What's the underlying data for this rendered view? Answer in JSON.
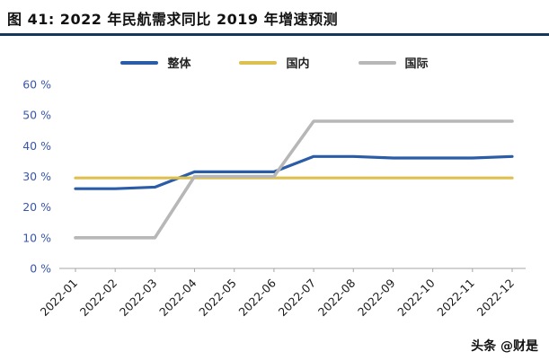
{
  "header": {
    "title": "图 41:  2022 年民航需求同比 2019 年增速预测"
  },
  "watermark": {
    "text": "头条 @财是"
  },
  "chart_data": {
    "type": "line",
    "title": "2022 年民航需求同比 2019 年增速预测",
    "xlabel": "",
    "ylabel": "",
    "x": [
      "2022-01",
      "2022-02",
      "2022-03",
      "2022-04",
      "2022-05",
      "2022-06",
      "2022-07",
      "2022-08",
      "2022-09",
      "2022-10",
      "2022-11",
      "2022-12"
    ],
    "ylim": [
      0,
      60
    ],
    "yticks": [
      0,
      10,
      20,
      30,
      40,
      50,
      60
    ],
    "ytick_suffix": " %",
    "grid": false,
    "legend_position": "top",
    "axis_color": "#a6a6a6",
    "ytick_label_color": "#3a57a7",
    "xtick_label_color": "#1a1a1a",
    "series": [
      {
        "name": "整体",
        "color": "#2a5ca8",
        "width": 3.2,
        "values": [
          26,
          26,
          26.5,
          31.5,
          31.5,
          31.5,
          36.5,
          36.5,
          36,
          36,
          36,
          36.5
        ]
      },
      {
        "name": "国内",
        "color": "#dec050",
        "width": 3.2,
        "values": [
          29.5,
          29.5,
          29.5,
          29.5,
          29.5,
          29.5,
          29.5,
          29.5,
          29.5,
          29.5,
          29.5,
          29.5
        ]
      },
      {
        "name": "国际",
        "color": "#b7b7b7",
        "width": 3.6,
        "values": [
          10,
          10,
          10,
          30,
          30,
          30,
          48,
          48,
          48,
          48,
          48,
          48
        ]
      }
    ]
  }
}
